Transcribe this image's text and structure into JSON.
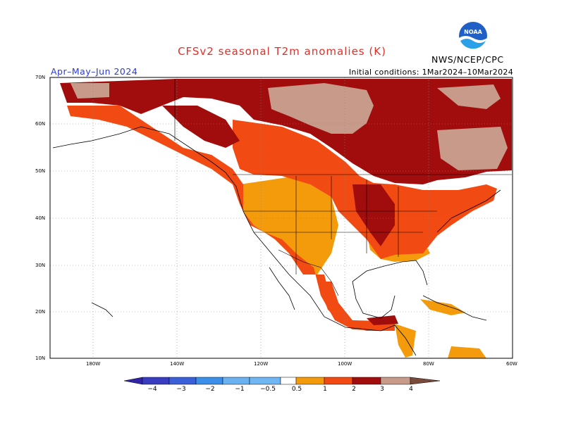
{
  "title": "CFSv2  seasonal  T2m  anomalies  (K)",
  "period": "Apr–May–Jun  2024",
  "initial_conditions": "Initial conditions:  1Mar2024–10Mar2024",
  "agency": "NWS/NCEP/CPC",
  "logo": {
    "name": "noaa-logo",
    "text": "NOAA"
  },
  "lat_labels": [
    "70N",
    "60N",
    "50N",
    "40N",
    "30N",
    "20N",
    "10N"
  ],
  "lon_labels": [
    "180W",
    "140W",
    "120W",
    "100W",
    "80W",
    "60W"
  ],
  "colorbar": {
    "labels": [
      "−4",
      "−3",
      "−2",
      "−1",
      "−0.5",
      "0.5",
      "1",
      "2",
      "3",
      "4"
    ],
    "colors": [
      "#3224a8",
      "#3a4fd6",
      "#3b8fe8",
      "#6ab2f2",
      "#ffffff",
      "#f49b0c",
      "#f24a13",
      "#a10d0d",
      "#c79a8a",
      "#7a4a3a"
    ]
  },
  "legend_colors": {
    "anomaly_0_5_to_1": "#f49b0c",
    "anomaly_1_to_2": "#f24a13",
    "anomaly_2_to_3": "#a10d0d",
    "anomaly_3_to_4": "#c79a8a"
  }
}
